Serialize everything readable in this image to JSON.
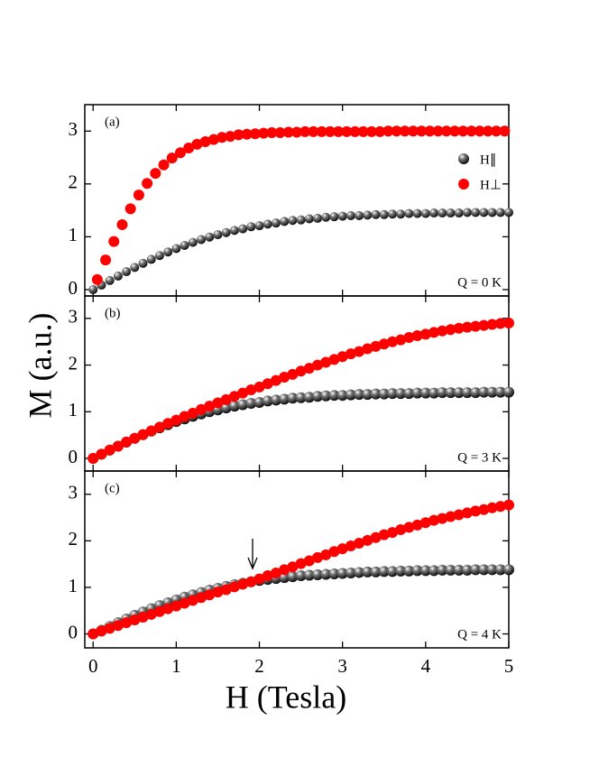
{
  "chart_data": [
    {
      "type": "scatter",
      "panel": "(a)",
      "annotation": "Q = 0 K",
      "legend": "upper right",
      "xlim": [
        -0.1,
        5
      ],
      "xticks": [
        0,
        1,
        2,
        3,
        4,
        5
      ],
      "ylim": [
        -0.12,
        3.5
      ],
      "yticks": [
        0,
        1,
        2,
        3
      ],
      "series": [
        {
          "name": "H∥",
          "color": "#000000",
          "x": [
            0,
            0.1,
            0.2,
            0.3,
            0.4,
            0.5,
            0.6,
            0.7,
            0.8,
            0.9,
            1,
            1.1,
            1.2,
            1.3,
            1.4,
            1.5,
            1.6,
            1.7,
            1.8,
            1.9,
            2,
            2.1,
            2.2,
            2.3,
            2.4,
            2.5,
            2.6,
            2.7,
            2.8,
            2.9,
            3,
            3.1,
            3.2,
            3.3,
            3.4,
            3.5,
            3.6,
            3.7,
            3.8,
            3.9,
            4,
            4.1,
            4.2,
            4.3,
            4.4,
            4.5,
            4.6,
            4.7,
            4.8,
            4.9,
            5
          ],
          "values": [
            0,
            0.086,
            0.172,
            0.257,
            0.34,
            0.42,
            0.498,
            0.573,
            0.645,
            0.713,
            0.777,
            0.837,
            0.894,
            0.947,
            0.995,
            1.04,
            1.08,
            1.12,
            1.15,
            1.19,
            1.21,
            1.24,
            1.26,
            1.29,
            1.31,
            1.32,
            1.34,
            1.35,
            1.37,
            1.38,
            1.39,
            1.4,
            1.4,
            1.41,
            1.42,
            1.42,
            1.43,
            1.43,
            1.44,
            1.44,
            1.44,
            1.45,
            1.45,
            1.45,
            1.45,
            1.46,
            1.46,
            1.46,
            1.46,
            1.46,
            1.46
          ]
        },
        {
          "name": "H⊥",
          "color": "#ff0000",
          "x": [
            0.05,
            0.15,
            0.25,
            0.35,
            0.45,
            0.55,
            0.65,
            0.75,
            0.85,
            0.95,
            1.05,
            1.15,
            1.25,
            1.35,
            1.45,
            1.55,
            1.65,
            1.75,
            1.85,
            1.95,
            2.05,
            2.15,
            2.25,
            2.35,
            2.45,
            2.55,
            2.65,
            2.75,
            2.85,
            2.95,
            3.05,
            3.15,
            3.25,
            3.35,
            3.45,
            3.55,
            3.65,
            3.75,
            3.85,
            3.95,
            4.05,
            4.15,
            4.25,
            4.35,
            4.45,
            4.55,
            4.65,
            4.75,
            4.85,
            4.95
          ],
          "values": [
            0.19,
            0.56,
            0.91,
            1.23,
            1.53,
            1.79,
            2.01,
            2.2,
            2.36,
            2.49,
            2.59,
            2.68,
            2.75,
            2.8,
            2.84,
            2.88,
            2.9,
            2.93,
            2.94,
            2.95,
            2.96,
            2.97,
            2.97,
            2.98,
            2.98,
            2.99,
            2.99,
            2.99,
            2.99,
            2.99,
            2.99,
            2.99,
            2.99,
            2.99,
            2.99,
            3,
            3,
            3,
            3,
            3,
            3,
            3,
            3,
            3,
            3,
            3,
            3,
            3,
            3,
            3
          ]
        }
      ]
    },
    {
      "type": "scatter",
      "panel": "(b)",
      "annotation": "Q = 3 K",
      "ylabel": "M (a.u.)",
      "xlim": [
        -0.1,
        5
      ],
      "xticks": [
        0,
        1,
        2,
        3,
        4,
        5
      ],
      "ylim": [
        -0.27,
        3.48
      ],
      "yticks": [
        0,
        1,
        2,
        3
      ],
      "series": [
        {
          "color": "#000000",
          "x": [
            0,
            0.1,
            0.2,
            0.3,
            0.4,
            0.5,
            0.6,
            0.7,
            0.8,
            0.9,
            1,
            1.1,
            1.2,
            1.3,
            1.4,
            1.5,
            1.6,
            1.7,
            1.8,
            1.9,
            2,
            2.1,
            2.2,
            2.3,
            2.4,
            2.5,
            2.6,
            2.7,
            2.8,
            2.9,
            3,
            3.1,
            3.2,
            3.3,
            3.4,
            3.5,
            3.6,
            3.7,
            3.8,
            3.9,
            4,
            4.1,
            4.2,
            4.3,
            4.4,
            4.5,
            4.6,
            4.7,
            4.8,
            4.9,
            5
          ],
          "values": [
            0,
            0.089,
            0.176,
            0.263,
            0.348,
            0.43,
            0.508,
            0.585,
            0.656,
            0.724,
            0.79,
            0.846,
            0.902,
            0.953,
            1,
            1.04,
            1.08,
            1.12,
            1.15,
            1.18,
            1.2,
            1.23,
            1.25,
            1.27,
            1.29,
            1.3,
            1.31,
            1.33,
            1.34,
            1.35,
            1.35,
            1.36,
            1.37,
            1.37,
            1.38,
            1.38,
            1.39,
            1.39,
            1.39,
            1.4,
            1.4,
            1.4,
            1.41,
            1.41,
            1.41,
            1.41,
            1.41,
            1.42,
            1.42,
            1.42,
            1.42
          ]
        },
        {
          "color": "#ff0000",
          "x": [
            0,
            0.1,
            0.2,
            0.3,
            0.4,
            0.5,
            0.6,
            0.7,
            0.8,
            0.9,
            1,
            1.1,
            1.2,
            1.3,
            1.4,
            1.5,
            1.6,
            1.7,
            1.8,
            1.9,
            2,
            2.1,
            2.2,
            2.3,
            2.4,
            2.5,
            2.6,
            2.7,
            2.8,
            2.9,
            3,
            3.1,
            3.2,
            3.3,
            3.4,
            3.5,
            3.6,
            3.7,
            3.8,
            3.9,
            4,
            4.1,
            4.2,
            4.3,
            4.4,
            4.5,
            4.6,
            4.7,
            4.8,
            4.9,
            5
          ],
          "values": [
            0,
            0.09,
            0.18,
            0.26,
            0.35,
            0.43,
            0.51,
            0.59,
            0.67,
            0.75,
            0.82,
            0.9,
            0.97,
            1.05,
            1.12,
            1.19,
            1.26,
            1.33,
            1.4,
            1.47,
            1.53,
            1.6,
            1.67,
            1.74,
            1.8,
            1.87,
            1.93,
            2,
            2.06,
            2.12,
            2.18,
            2.24,
            2.29,
            2.35,
            2.4,
            2.45,
            2.5,
            2.54,
            2.59,
            2.63,
            2.66,
            2.7,
            2.73,
            2.76,
            2.79,
            2.81,
            2.83,
            2.85,
            2.87,
            2.89,
            2.9
          ]
        }
      ]
    },
    {
      "type": "scatter",
      "panel": "(c)",
      "annotation": "Q = 4 K",
      "xlabel": "H (Tesla)",
      "xlim": [
        -0.1,
        5
      ],
      "xticks": [
        0,
        1,
        2,
        3,
        4,
        5
      ],
      "ylim": [
        -0.3,
        3.5
      ],
      "yticks": [
        0,
        1,
        2,
        3
      ],
      "series": [
        {
          "color": "#000000",
          "x": [
            0,
            0.1,
            0.2,
            0.3,
            0.4,
            0.5,
            0.6,
            0.7,
            0.8,
            0.9,
            1,
            1.1,
            1.2,
            1.3,
            1.4,
            1.5,
            1.6,
            1.7,
            1.8,
            1.9,
            2,
            2.1,
            2.2,
            2.3,
            2.4,
            2.5,
            2.6,
            2.7,
            2.8,
            2.9,
            3,
            3.1,
            3.2,
            3.3,
            3.4,
            3.5,
            3.6,
            3.7,
            3.8,
            3.9,
            4,
            4.1,
            4.2,
            4.3,
            4.4,
            4.5,
            4.6,
            4.7,
            4.8,
            4.9,
            5
          ],
          "values": [
            0,
            0.08,
            0.16,
            0.24,
            0.32,
            0.4,
            0.47,
            0.54,
            0.61,
            0.67,
            0.73,
            0.79,
            0.84,
            0.89,
            0.94,
            0.98,
            1.02,
            1.06,
            1.09,
            1.12,
            1.15,
            1.17,
            1.19,
            1.21,
            1.23,
            1.25,
            1.26,
            1.27,
            1.28,
            1.29,
            1.3,
            1.31,
            1.32,
            1.33,
            1.33,
            1.34,
            1.34,
            1.35,
            1.35,
            1.36,
            1.36,
            1.36,
            1.37,
            1.37,
            1.37,
            1.37,
            1.38,
            1.38,
            1.38,
            1.38,
            1.38
          ]
        },
        {
          "color": "#ff0000",
          "x": [
            0,
            0.1,
            0.2,
            0.3,
            0.4,
            0.5,
            0.6,
            0.7,
            0.8,
            0.9,
            1,
            1.1,
            1.2,
            1.3,
            1.4,
            1.5,
            1.6,
            1.7,
            1.8,
            1.9,
            2,
            2.1,
            2.2,
            2.3,
            2.4,
            2.5,
            2.6,
            2.7,
            2.8,
            2.9,
            3,
            3.1,
            3.2,
            3.3,
            3.4,
            3.5,
            3.6,
            3.7,
            3.8,
            3.9,
            4,
            4.1,
            4.2,
            4.3,
            4.4,
            4.5,
            4.6,
            4.7,
            4.8,
            4.9,
            5
          ],
          "values": [
            0,
            0.06,
            0.12,
            0.18,
            0.24,
            0.3,
            0.36,
            0.42,
            0.48,
            0.54,
            0.6,
            0.66,
            0.72,
            0.78,
            0.84,
            0.9,
            0.95,
            1.01,
            1.07,
            1.12,
            1.18,
            1.25,
            1.31,
            1.38,
            1.44,
            1.51,
            1.57,
            1.64,
            1.7,
            1.77,
            1.83,
            1.89,
            1.95,
            2.01,
            2.07,
            2.13,
            2.18,
            2.24,
            2.29,
            2.34,
            2.39,
            2.44,
            2.48,
            2.52,
            2.56,
            2.6,
            2.64,
            2.67,
            2.71,
            2.74,
            2.77
          ]
        }
      ]
    }
  ]
}
